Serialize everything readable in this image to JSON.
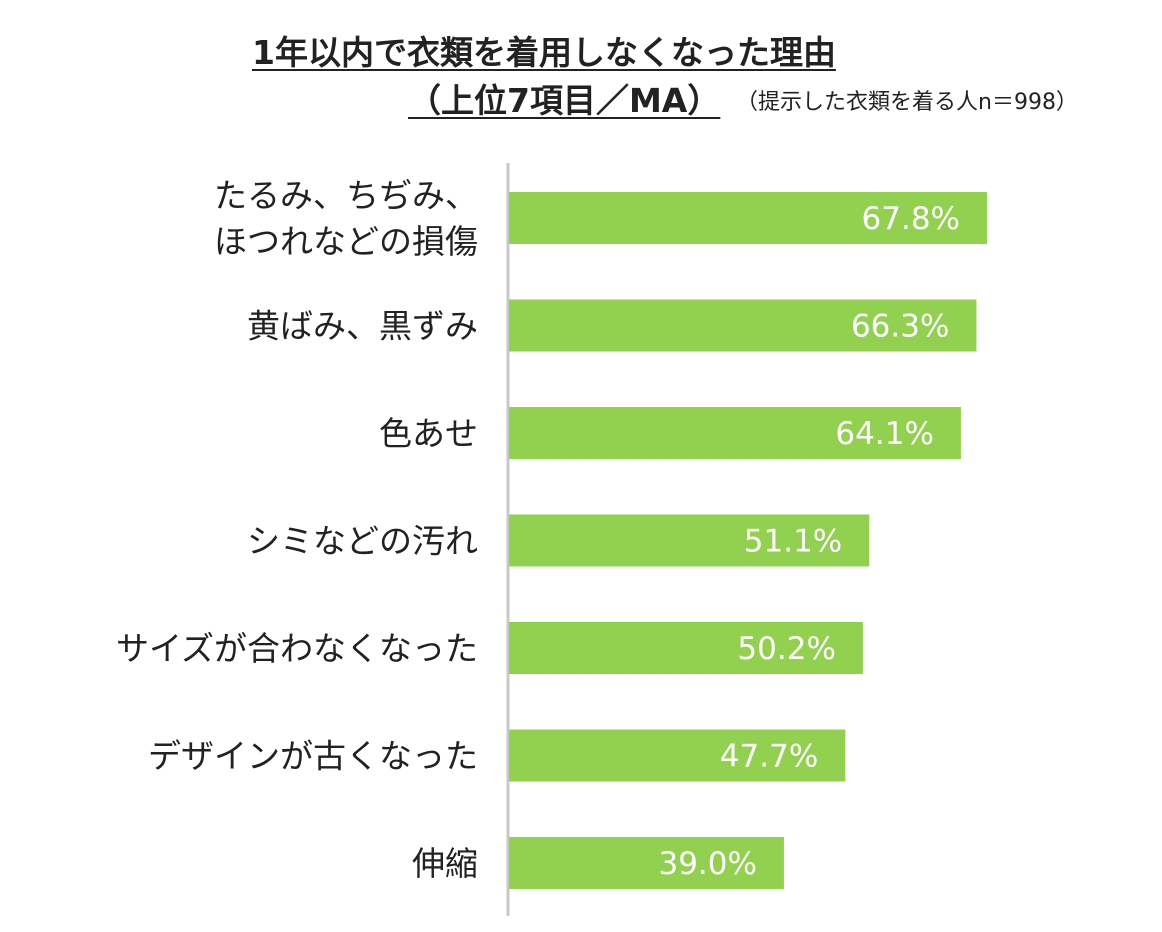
{
  "chart_data": {
    "type": "bar",
    "orientation": "horizontal",
    "title": "1年以内で衣類を着用しなくなった理由",
    "title_line2": "（上位7項目／MA）",
    "subtitle": "（提示した衣類を着る人n＝998）",
    "categories": [
      [
        "たるみ、ちぢみ、",
        "ほつれなどの損傷"
      ],
      [
        "黄ばみ、黒ずみ"
      ],
      [
        "色あせ"
      ],
      [
        "シミなどの汚れ"
      ],
      [
        "サイズが合わなくなった"
      ],
      [
        "デザインが古くなった"
      ],
      [
        "伸縮"
      ]
    ],
    "values": [
      67.8,
      66.3,
      64.1,
      51.1,
      50.2,
      47.7,
      39.0
    ],
    "data_labels": [
      "67.8%",
      "66.3%",
      "64.1%",
      "51.1%",
      "50.2%",
      "47.7%",
      "39.0%"
    ],
    "xlim": [
      0,
      100
    ],
    "grid": false,
    "legend": "none",
    "bar_color": "#92d050",
    "axis_color": "#c8c8c8"
  }
}
